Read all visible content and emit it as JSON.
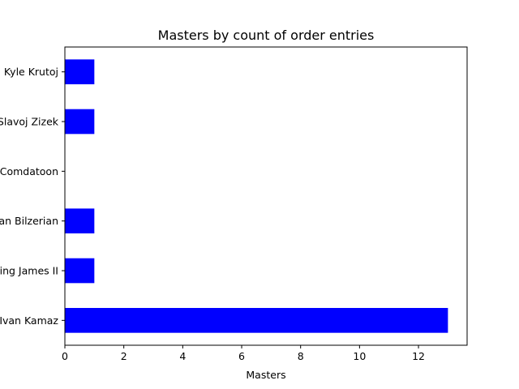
{
  "chart_data": {
    "type": "bar",
    "orientation": "horizontal",
    "title": "Masters by count of order entries",
    "xlabel": "Masters",
    "ylabel": "",
    "categories": [
      "Ivan Kamaz",
      "King James II",
      "Dan Bilzerian",
      "Comdatoon",
      "Slavoj Zizek",
      "Kyle Krutoj"
    ],
    "values": [
      13,
      1,
      1,
      0,
      1,
      1
    ],
    "xlim": [
      0,
      13.65
    ],
    "xticks": [
      0,
      2,
      4,
      6,
      8,
      10,
      12
    ],
    "bar_color": "#0000ff",
    "grid": false,
    "legend": "none"
  }
}
